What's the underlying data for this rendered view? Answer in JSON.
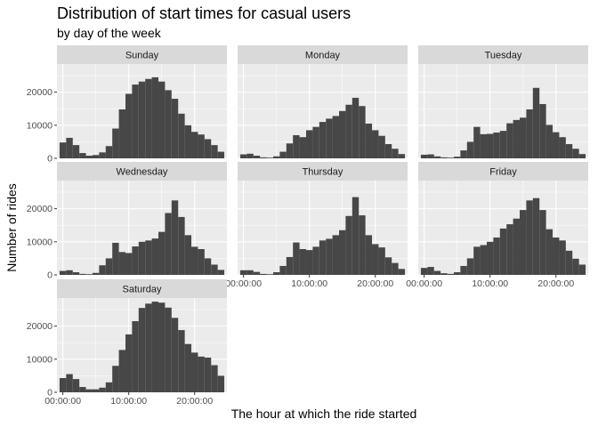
{
  "chart_data": {
    "type": "bar",
    "title": "Distribution of start times for casual users",
    "subtitle": "by day of the week",
    "xlabel": "The hour at which the ride started",
    "ylabel": "Number of rides",
    "x_ticks": [
      "00:00:00",
      "10:00:00",
      "20:00:00"
    ],
    "x_tick_hours": [
      0,
      10,
      20
    ],
    "y_ticks": [
      0,
      10000,
      20000
    ],
    "ylim": [
      0,
      28500
    ],
    "x_range_hours": [
      -0.9,
      24.9
    ],
    "bin_width_hours": 1,
    "categories": [
      "0",
      "1",
      "2",
      "3",
      "4",
      "5",
      "6",
      "7",
      "8",
      "9",
      "10",
      "11",
      "12",
      "13",
      "14",
      "15",
      "16",
      "17",
      "18",
      "19",
      "20",
      "21",
      "22",
      "23",
      "24"
    ],
    "series": [
      {
        "name": "Sunday",
        "values": [
          4800,
          6200,
          4000,
          1600,
          800,
          1000,
          1800,
          3700,
          9000,
          14800,
          19500,
          22300,
          23200,
          24000,
          24500,
          23200,
          20600,
          18000,
          13500,
          10000,
          8000,
          7200,
          5800,
          4000,
          2000
        ]
      },
      {
        "name": "Monday",
        "values": [
          1200,
          1400,
          800,
          300,
          200,
          600,
          2000,
          4500,
          7000,
          6400,
          8500,
          9500,
          11000,
          12000,
          12800,
          14300,
          16200,
          18300,
          15800,
          10500,
          8500,
          6800,
          4300,
          2900,
          1300
        ]
      },
      {
        "name": "Tuesday",
        "values": [
          1100,
          1200,
          600,
          300,
          200,
          500,
          2400,
          5000,
          9500,
          7300,
          7400,
          7800,
          8300,
          10600,
          11600,
          12300,
          14800,
          21300,
          16400,
          10100,
          7900,
          6400,
          4300,
          2900,
          1300
        ]
      },
      {
        "name": "Wednesday",
        "values": [
          1200,
          1400,
          800,
          300,
          200,
          600,
          2900,
          5000,
          9700,
          6900,
          6600,
          8600,
          10000,
          10400,
          11000,
          13000,
          18700,
          22500,
          17500,
          12000,
          8500,
          7800,
          5000,
          3100,
          1500
        ]
      },
      {
        "name": "Thursday",
        "values": [
          1400,
          1400,
          900,
          300,
          200,
          800,
          2700,
          5400,
          9800,
          7800,
          7500,
          8500,
          10400,
          10900,
          12000,
          13500,
          17800,
          23500,
          18000,
          12000,
          9300,
          8300,
          5300,
          3600,
          1800
        ]
      },
      {
        "name": "Friday",
        "values": [
          2100,
          2400,
          1200,
          500,
          300,
          800,
          2700,
          5000,
          8500,
          9000,
          10000,
          11300,
          14000,
          15300,
          17000,
          19600,
          22500,
          23200,
          19600,
          13800,
          11300,
          10400,
          7300,
          4900,
          3100
        ]
      },
      {
        "name": "Saturday",
        "values": [
          4300,
          5500,
          4000,
          1600,
          900,
          900,
          1400,
          3000,
          8000,
          12800,
          17500,
          21500,
          25500,
          26800,
          27400,
          27100,
          25600,
          22500,
          18800,
          14600,
          12000,
          10800,
          10500,
          8200,
          5000
        ]
      }
    ],
    "panel_y_tick_labels": [
      true,
      false,
      false,
      true,
      false,
      false,
      true
    ],
    "panel_x_tick_labels": [
      false,
      false,
      false,
      false,
      true,
      true,
      true
    ],
    "grid": true,
    "legend": "none"
  },
  "colors": {
    "bar": "#474747",
    "panel_background": "#ebebeb",
    "grid_major": "#ffffff",
    "strip_background": "#d9d9d9",
    "strip_text": "#1a1a1a",
    "tick_text": "#4d4d4d",
    "tick_mark": "#333333"
  }
}
